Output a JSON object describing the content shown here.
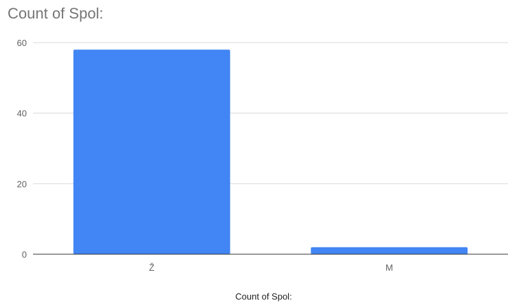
{
  "chart_data": {
    "type": "bar",
    "title": "Count of Spol:",
    "xlabel": "Count of Spol:",
    "ylabel": "",
    "categories": [
      "Ž",
      "M"
    ],
    "values": [
      58,
      2
    ],
    "ylim": [
      0,
      60
    ],
    "yticks": [
      0,
      20,
      40,
      60
    ],
    "grid": true,
    "bar_color": "#4285f4",
    "grid_color": "#d9d9d9",
    "axis_color": "#333333"
  }
}
